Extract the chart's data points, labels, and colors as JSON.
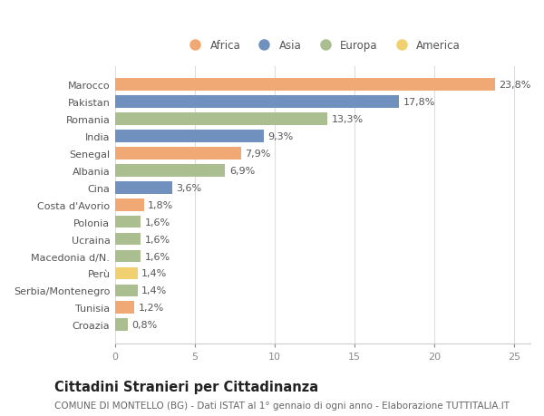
{
  "categories": [
    "Marocco",
    "Pakistan",
    "Romania",
    "India",
    "Senegal",
    "Albania",
    "Cina",
    "Costa d'Avorio",
    "Polonia",
    "Ucraina",
    "Macedonia d/N.",
    "Perù",
    "Serbia/Montenegro",
    "Tunisia",
    "Croazia"
  ],
  "values": [
    23.8,
    17.8,
    13.3,
    9.3,
    7.9,
    6.9,
    3.6,
    1.8,
    1.6,
    1.6,
    1.6,
    1.4,
    1.4,
    1.2,
    0.8
  ],
  "continents": [
    "Africa",
    "Asia",
    "Europa",
    "Asia",
    "Africa",
    "Europa",
    "Asia",
    "Africa",
    "Europa",
    "Europa",
    "Europa",
    "America",
    "Europa",
    "Africa",
    "Europa"
  ],
  "continent_colors": {
    "Africa": "#F0A875",
    "Asia": "#7090BE",
    "Europa": "#ABBE8F",
    "America": "#F0D070"
  },
  "legend_order": [
    "Africa",
    "Asia",
    "Europa",
    "America"
  ],
  "xlim": [
    0,
    26
  ],
  "xticks": [
    0,
    5,
    10,
    15,
    20,
    25
  ],
  "title": "Cittadini Stranieri per Cittadinanza",
  "subtitle": "COMUNE DI MONTELLO (BG) - Dati ISTAT al 1° gennaio di ogni anno - Elaborazione TUTTITALIA.IT",
  "background_color": "#ffffff",
  "plot_bg_color": "#ffffff",
  "bar_height": 0.72,
  "label_fontsize": 8,
  "ytick_fontsize": 8,
  "xtick_fontsize": 8,
  "title_fontsize": 10.5,
  "subtitle_fontsize": 7.5,
  "legend_fontsize": 8.5
}
